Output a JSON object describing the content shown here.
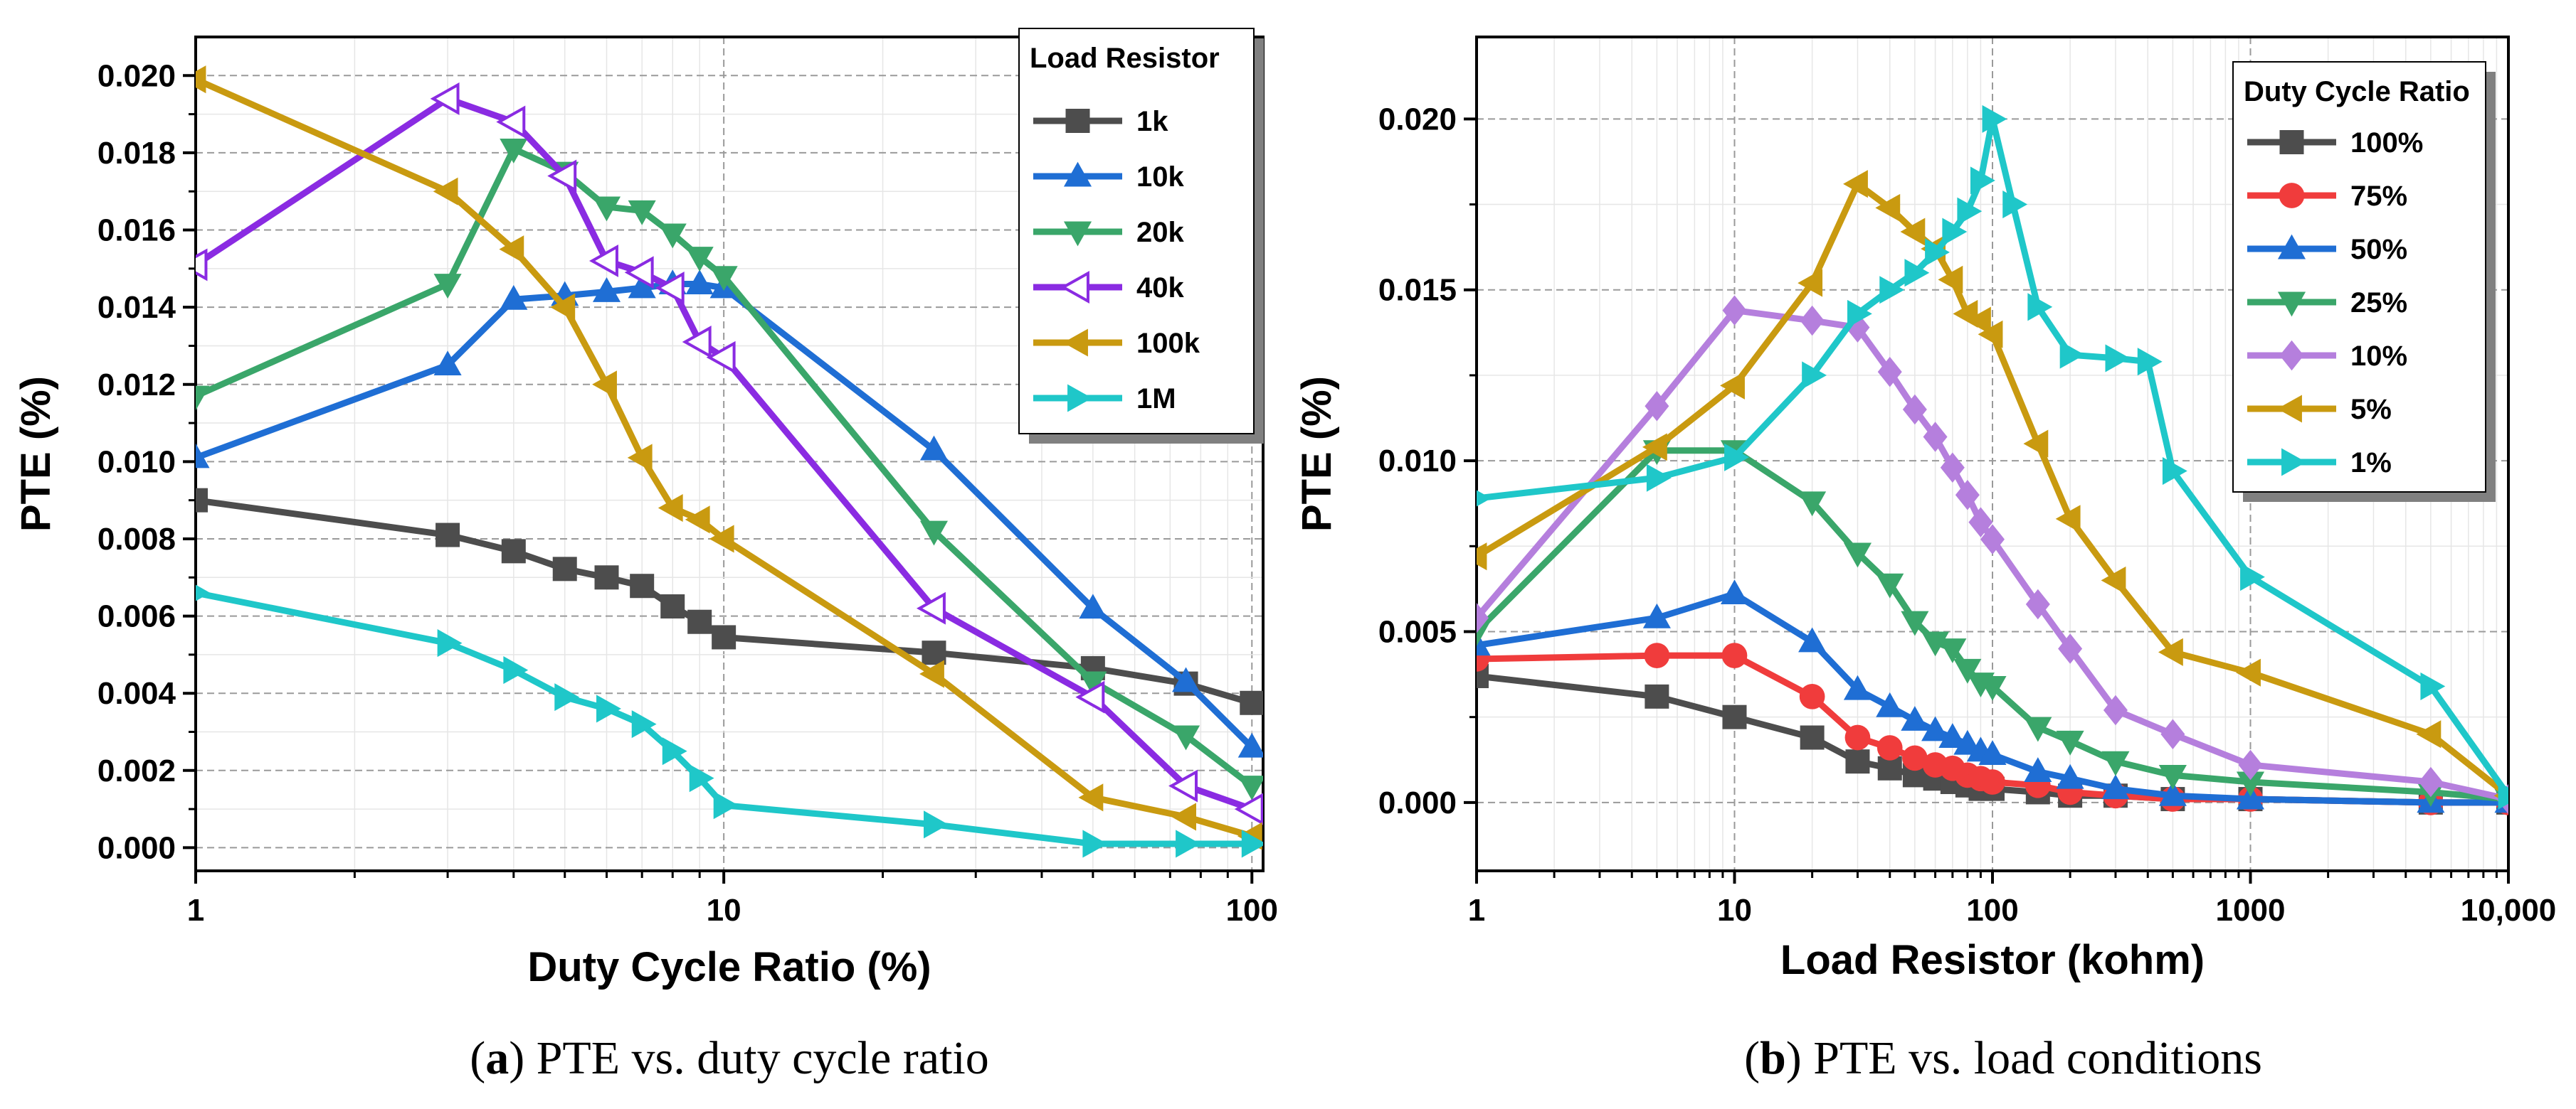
{
  "chart_data": [
    {
      "type": "line",
      "caption": {
        "letter": "a",
        "text": " PTE vs. duty cycle ratio"
      },
      "xscale": "log",
      "xlim": [
        1,
        105
      ],
      "ylim": [
        -0.0006,
        0.021
      ],
      "xlabel": "Duty Cycle Ratio (%)",
      "ylabel": "PTE (%)",
      "xticks": [
        1,
        10,
        100
      ],
      "xtick_labels": [
        "1",
        "10",
        "100"
      ],
      "yticks": [
        0,
        0.002,
        0.004,
        0.006,
        0.008,
        0.01,
        0.012,
        0.014,
        0.016,
        0.018,
        0.02
      ],
      "ytick_labels": [
        "0.000",
        "0.002",
        "0.004",
        "0.006",
        "0.008",
        "0.010",
        "0.012",
        "0.014",
        "0.016",
        "0.018",
        "0.020"
      ],
      "legend_title": "Load Resistor",
      "legend_position": "top-right",
      "series": [
        {
          "name": "1k",
          "color": "#4d4d4d",
          "marker": "square",
          "x": [
            1,
            3,
            4,
            5,
            6,
            7,
            8,
            9,
            10,
            25,
            50,
            75,
            100
          ],
          "y": [
            0.009,
            0.0081,
            0.00768,
            0.00722,
            0.007,
            0.00678,
            0.00625,
            0.00585,
            0.00545,
            0.00505,
            0.00465,
            0.00425,
            0.00375
          ]
        },
        {
          "name": "10k",
          "color": "#1f6ed4",
          "marker": "triangle-up",
          "x": [
            1,
            3,
            4,
            5,
            6,
            7,
            8,
            9,
            10,
            25,
            50,
            75,
            100
          ],
          "y": [
            0.0101,
            0.0125,
            0.0142,
            0.0143,
            0.0144,
            0.0145,
            0.0146,
            0.0146,
            0.0145,
            0.0103,
            0.0062,
            0.0043,
            0.0026
          ]
        },
        {
          "name": "20k",
          "color": "#3aa66a",
          "marker": "triangle-down",
          "x": [
            1,
            3,
            4,
            5,
            6,
            7,
            8,
            9,
            10,
            25,
            50,
            75,
            100
          ],
          "y": [
            0.0117,
            0.0146,
            0.0181,
            0.0175,
            0.0166,
            0.0165,
            0.0159,
            0.0153,
            0.0148,
            0.0082,
            0.0043,
            0.0029,
            0.0016
          ]
        },
        {
          "name": "40k",
          "color": "#8a2be2",
          "marker": "triangle-left-open",
          "x": [
            1,
            3,
            4,
            5,
            6,
            7,
            8,
            9,
            10,
            25,
            50,
            75,
            100
          ],
          "y": [
            0.0151,
            0.0194,
            0.0188,
            0.0174,
            0.0152,
            0.0149,
            0.0145,
            0.0131,
            0.0127,
            0.0062,
            0.0039,
            0.0016,
            0.001
          ]
        },
        {
          "name": "100k",
          "color": "#c99a10",
          "marker": "triangle-left",
          "x": [
            1,
            3,
            4,
            5,
            6,
            7,
            8,
            9,
            10,
            25,
            50,
            75,
            100
          ],
          "y": [
            0.0199,
            0.017,
            0.0155,
            0.014,
            0.012,
            0.0101,
            0.0088,
            0.0085,
            0.008,
            0.0045,
            0.0013,
            0.0008,
            0.0003
          ]
        },
        {
          "name": "1M",
          "color": "#1fc7c9",
          "marker": "triangle-right",
          "x": [
            1,
            3,
            4,
            5,
            6,
            7,
            8,
            9,
            10,
            25,
            50,
            75,
            100
          ],
          "y": [
            0.0066,
            0.0053,
            0.0046,
            0.0039,
            0.0036,
            0.0032,
            0.0025,
            0.0018,
            0.0011,
            0.0006,
            0.0001,
            0.0001,
            0.0001
          ]
        }
      ]
    },
    {
      "type": "line",
      "caption": {
        "letter": "b",
        "text": " PTE vs. load conditions"
      },
      "xscale": "log",
      "xlim": [
        1,
        10000
      ],
      "ylim": [
        -0.002,
        0.0224
      ],
      "xlabel": "Load Resistor (kohm)",
      "ylabel": "PTE (%)",
      "xticks": [
        1,
        10,
        100,
        1000,
        10000
      ],
      "xtick_labels": [
        "1",
        "10",
        "100",
        "1000",
        "10,000"
      ],
      "yticks": [
        0,
        0.005,
        0.01,
        0.015,
        0.02
      ],
      "ytick_labels": [
        "0.000",
        "0.005",
        "0.010",
        "0.015",
        "0.020"
      ],
      "legend_title": "Duty Cycle Ratio",
      "legend_position": "top-right",
      "series": [
        {
          "name": "100%",
          "color": "#4d4d4d",
          "marker": "square",
          "x": [
            1,
            5,
            10,
            20,
            30,
            40,
            50,
            60,
            70,
            80,
            90,
            100,
            150,
            200,
            300,
            500,
            1000,
            5000,
            10000
          ],
          "y": [
            0.0037,
            0.0031,
            0.0025,
            0.0019,
            0.0012,
            0.001,
            0.0008,
            0.0007,
            0.0006,
            0.0005,
            0.0004,
            0.0004,
            0.0003,
            0.0002,
            0.0002,
            0.0001,
            0.0001,
            0.0,
            0.0
          ]
        },
        {
          "name": "75%",
          "color": "#f03c3c",
          "marker": "circle",
          "x": [
            1,
            5,
            10,
            20,
            30,
            40,
            50,
            60,
            70,
            80,
            90,
            100,
            150,
            200,
            300,
            500,
            1000,
            5000,
            10000
          ],
          "y": [
            0.0042,
            0.0043,
            0.0043,
            0.0031,
            0.0019,
            0.0016,
            0.0013,
            0.0011,
            0.001,
            0.0008,
            0.0007,
            0.0006,
            0.0005,
            0.0003,
            0.0002,
            0.0001,
            0.0001,
            0.0,
            0.0
          ]
        },
        {
          "name": "50%",
          "color": "#1f6ed4",
          "marker": "triangle-up",
          "x": [
            1,
            5,
            10,
            20,
            30,
            40,
            50,
            60,
            70,
            80,
            90,
            100,
            150,
            200,
            300,
            500,
            1000,
            5000,
            10000
          ],
          "y": [
            0.0046,
            0.0054,
            0.0061,
            0.0047,
            0.0033,
            0.0028,
            0.0024,
            0.0021,
            0.0019,
            0.0017,
            0.0015,
            0.0014,
            0.0009,
            0.0007,
            0.0004,
            0.0002,
            0.0001,
            0.0,
            0.0
          ]
        },
        {
          "name": "25%",
          "color": "#3aa66a",
          "marker": "triangle-down",
          "x": [
            1,
            5,
            10,
            20,
            30,
            40,
            50,
            60,
            70,
            80,
            90,
            100,
            150,
            200,
            300,
            500,
            1000,
            5000,
            10000
          ],
          "y": [
            0.005,
            0.0103,
            0.0103,
            0.0088,
            0.0073,
            0.0064,
            0.0053,
            0.0047,
            0.0045,
            0.0039,
            0.0035,
            0.0034,
            0.0022,
            0.0018,
            0.0012,
            0.0008,
            0.0006,
            0.0003,
            0.0001
          ]
        },
        {
          "name": "10%",
          "color": "#b57fdd",
          "marker": "diamond",
          "x": [
            1,
            5,
            10,
            20,
            30,
            40,
            50,
            60,
            70,
            80,
            90,
            100,
            150,
            200,
            300,
            500,
            1000,
            5000,
            10000
          ],
          "y": [
            0.0054,
            0.0116,
            0.0144,
            0.0141,
            0.0139,
            0.0126,
            0.0115,
            0.0107,
            0.0098,
            0.009,
            0.0082,
            0.0077,
            0.0058,
            0.0045,
            0.0027,
            0.002,
            0.0011,
            0.0006,
            0.0001
          ]
        },
        {
          "name": "5%",
          "color": "#c99a10",
          "marker": "triangle-left",
          "x": [
            1,
            5,
            10,
            20,
            30,
            40,
            50,
            60,
            70,
            80,
            90,
            100,
            150,
            200,
            300,
            500,
            1000,
            5000,
            10000
          ],
          "y": [
            0.0072,
            0.0104,
            0.0122,
            0.0152,
            0.0181,
            0.0174,
            0.0167,
            0.0162,
            0.0153,
            0.0143,
            0.0141,
            0.0137,
            0.0105,
            0.0083,
            0.0065,
            0.0044,
            0.0038,
            0.002,
            0.0002
          ]
        },
        {
          "name": "1%",
          "color": "#1fc7c9",
          "marker": "triangle-right",
          "x": [
            1,
            5,
            10,
            20,
            30,
            40,
            50,
            60,
            70,
            80,
            90,
            100,
            120,
            150,
            200,
            300,
            400,
            500,
            1000,
            5000,
            10000
          ],
          "y": [
            0.0089,
            0.0095,
            0.0101,
            0.0125,
            0.0143,
            0.015,
            0.0155,
            0.0161,
            0.0167,
            0.0173,
            0.0182,
            0.02,
            0.0175,
            0.0145,
            0.0131,
            0.013,
            0.0129,
            0.0097,
            0.0066,
            0.0034,
            0.0002
          ]
        }
      ]
    }
  ]
}
